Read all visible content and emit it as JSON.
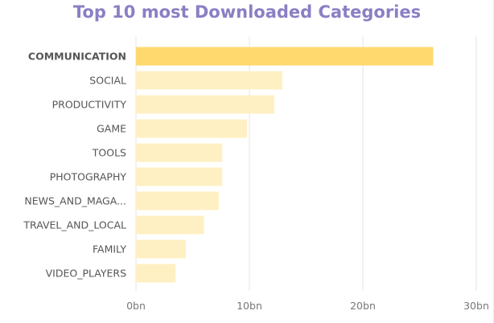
{
  "colors": {
    "title": "#8a7fc4",
    "highlight_bar": "#ffd86e",
    "bar": "#fff0c4",
    "grid": "#e6e6e6",
    "label": "#555555",
    "tick": "#777777"
  },
  "chart_data": {
    "type": "bar",
    "orientation": "horizontal",
    "title": "Top 10 most Downloaded Categories",
    "xlabel": "",
    "ylabel": "",
    "categories": [
      "COMMUNICATION",
      "SOCIAL",
      "PRODUCTIVITY",
      "GAME",
      "TOOLS",
      "PHOTOGRAPHY",
      "NEWS_AND_MAGA...",
      "TRAVEL_AND_LOCAL",
      "FAMILY",
      "VIDEO_PLAYERS"
    ],
    "values": [
      26.2,
      12.9,
      12.2,
      9.8,
      7.6,
      7.6,
      7.3,
      6.0,
      4.4,
      3.5
    ],
    "unit": "bn",
    "highlighted_index": 0,
    "xlim": [
      0,
      30
    ],
    "xticks": [
      {
        "value": 0,
        "label": "0bn"
      },
      {
        "value": 10,
        "label": "10bn"
      },
      {
        "value": 20,
        "label": "20bn"
      },
      {
        "value": 30,
        "label": "30bn"
      }
    ],
    "grid": true,
    "legend": "none"
  }
}
